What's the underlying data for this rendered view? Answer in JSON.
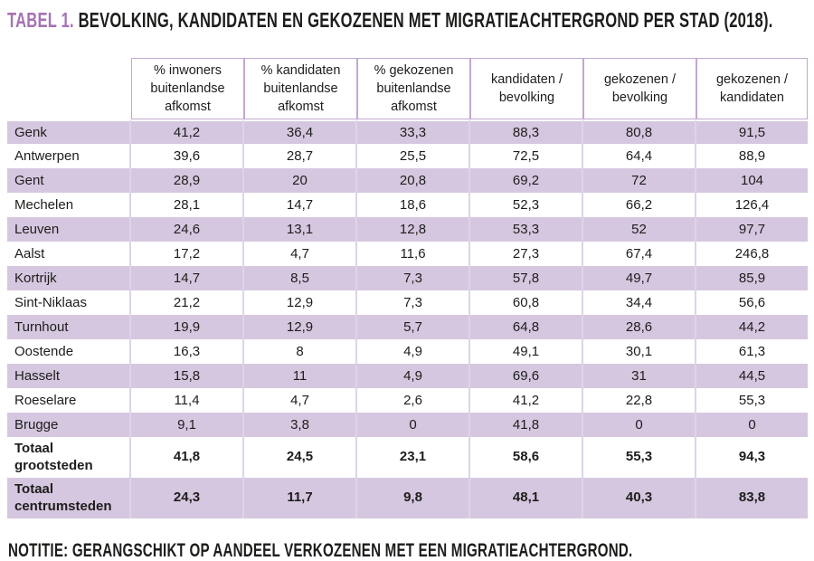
{
  "title": {
    "label": "TABEL 1.",
    "text": " BEVOLKING, KANDIDATEN EN GEKOZENEN MET MIGRATIEACHTERGROND PER STAD (2018)."
  },
  "table": {
    "column_headers": [
      "% inwoners buitenlandse afkomst",
      "% kandidaten buitenlandse afkomst",
      "% gekozenen buitenlandse afkomst",
      "kandidaten / bevolking",
      "gekozenen / bevolking",
      "gekozenen / kandidaten"
    ],
    "rows": [
      {
        "name": "Genk",
        "values": [
          "41,2",
          "36,4",
          "33,3",
          "88,3",
          "80,8",
          "91,5"
        ]
      },
      {
        "name": "Antwerpen",
        "values": [
          "39,6",
          "28,7",
          "25,5",
          "72,5",
          "64,4",
          "88,9"
        ]
      },
      {
        "name": "Gent",
        "values": [
          "28,9",
          "20",
          "20,8",
          "69,2",
          "72",
          "104"
        ]
      },
      {
        "name": "Mechelen",
        "values": [
          "28,1",
          "14,7",
          "18,6",
          "52,3",
          "66,2",
          "126,4"
        ]
      },
      {
        "name": "Leuven",
        "values": [
          "24,6",
          "13,1",
          "12,8",
          "53,3",
          "52",
          "97,7"
        ]
      },
      {
        "name": "Aalst",
        "values": [
          "17,2",
          "4,7",
          "11,6",
          "27,3",
          "67,4",
          "246,8"
        ]
      },
      {
        "name": "Kortrijk",
        "values": [
          "14,7",
          "8,5",
          "7,3",
          "57,8",
          "49,7",
          "85,9"
        ]
      },
      {
        "name": "Sint-Niklaas",
        "values": [
          "21,2",
          "12,9",
          "7,3",
          "60,8",
          "34,4",
          "56,6"
        ]
      },
      {
        "name": "Turnhout",
        "values": [
          "19,9",
          "12,9",
          "5,7",
          "64,8",
          "28,6",
          "44,2"
        ]
      },
      {
        "name": "Oostende",
        "values": [
          "16,3",
          "8",
          "4,9",
          "49,1",
          "30,1",
          "61,3"
        ]
      },
      {
        "name": "Hasselt",
        "values": [
          "15,8",
          "11",
          "4,9",
          "69,6",
          "31",
          "44,5"
        ]
      },
      {
        "name": "Roeselare",
        "values": [
          "11,4",
          "4,7",
          "2,6",
          "41,2",
          "22,8",
          "55,3"
        ]
      },
      {
        "name": "Brugge",
        "values": [
          "9,1",
          "3,8",
          "0",
          "41,8",
          "0",
          "0"
        ]
      }
    ],
    "totals": [
      {
        "name": "Totaal grootsteden",
        "values": [
          "41,8",
          "24,5",
          "23,1",
          "58,6",
          "55,3",
          "94,3"
        ]
      },
      {
        "name": "Totaal centrumsteden",
        "values": [
          "24,3",
          "11,7",
          "9,8",
          "48,1",
          "40,3",
          "83,8"
        ]
      }
    ]
  },
  "note": "NOTITIE: GERANGSCHIKT OP AANDEEL VERKOZENEN MET EEN MIGRATIEACHTERGROND.",
  "colors": {
    "accent_purple": "#a572b4",
    "row_purple": "#d6c7e0",
    "header_border": "#c2a7d0",
    "cell_separator": "#ded3e8",
    "text": "#1d1d1b"
  }
}
